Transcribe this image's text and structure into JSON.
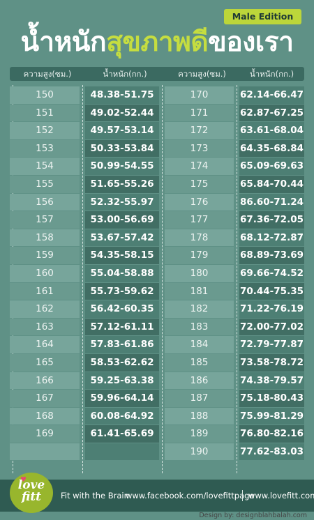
{
  "edition_badge": "Male Edition",
  "title": {
    "part1": "น้ำหนัก",
    "part2": "สุขภาพดี",
    "part3": "ของเรา"
  },
  "table": {
    "headers": [
      "ความสูง(ซม.)",
      "น้ำหนัก(กก.)",
      "ความสูง(ซม.)",
      "น้ำหนัก(กก.)"
    ],
    "left": [
      {
        "height": "150",
        "weight": "48.38-51.75"
      },
      {
        "height": "151",
        "weight": "49.02-52.44"
      },
      {
        "height": "152",
        "weight": "49.57-53.14"
      },
      {
        "height": "153",
        "weight": "50.33-53.84"
      },
      {
        "height": "154",
        "weight": "50.99-54.55"
      },
      {
        "height": "155",
        "weight": "51.65-55.26"
      },
      {
        "height": "156",
        "weight": "52.32-55.97"
      },
      {
        "height": "157",
        "weight": "53.00-56.69"
      },
      {
        "height": "158",
        "weight": "53.67-57.42"
      },
      {
        "height": "159",
        "weight": "54.35-58.15"
      },
      {
        "height": "160",
        "weight": "55.04-58.88"
      },
      {
        "height": "161",
        "weight": "55.73-59.62"
      },
      {
        "height": "162",
        "weight": "56.42-60.35"
      },
      {
        "height": "163",
        "weight": "57.12-61.11"
      },
      {
        "height": "164",
        "weight": "57.83-61.86"
      },
      {
        "height": "165",
        "weight": "58.53-62.62"
      },
      {
        "height": "166",
        "weight": "59.25-63.38"
      },
      {
        "height": "167",
        "weight": "59.96-64.14"
      },
      {
        "height": "168",
        "weight": "60.08-64.92"
      },
      {
        "height": "169",
        "weight": "61.41-65.69"
      }
    ],
    "right": [
      {
        "height": "170",
        "weight": "62.14-66.47"
      },
      {
        "height": "171",
        "weight": "62.87-67.25"
      },
      {
        "height": "172",
        "weight": "63.61-68.04"
      },
      {
        "height": "173",
        "weight": "64.35-68.84"
      },
      {
        "height": "174",
        "weight": "65.09-69.63"
      },
      {
        "height": "175",
        "weight": "65.84-70.44"
      },
      {
        "height": "176",
        "weight": "86.60-71.24"
      },
      {
        "height": "177",
        "weight": "67.36-72.05"
      },
      {
        "height": "178",
        "weight": "68.12-72.87"
      },
      {
        "height": "179",
        "weight": "68.89-73.69"
      },
      {
        "height": "180",
        "weight": "69.66-74.52"
      },
      {
        "height": "181",
        "weight": "70.44-75.35"
      },
      {
        "height": "182",
        "weight": "71.22-76.19"
      },
      {
        "height": "183",
        "weight": "72.00-77.02"
      },
      {
        "height": "184",
        "weight": "72.79-77.87"
      },
      {
        "height": "185",
        "weight": "73.58-78.72"
      },
      {
        "height": "186",
        "weight": "74.38-79.57"
      },
      {
        "height": "187",
        "weight": "75.18-80.43"
      },
      {
        "height": "188",
        "weight": "75.99-81.29"
      },
      {
        "height": "189",
        "weight": "76.80-82.16"
      },
      {
        "height": "190",
        "weight": "77.62-83.03"
      }
    ]
  },
  "footer": {
    "logo_text_line1": "love",
    "logo_text_line2": "fitt",
    "tagline": "Fit with the Brain",
    "facebook": "www.facebook.com/lovefittpage",
    "website": "www.lovefitt.com",
    "credit": "Design by: designblahbalah.com"
  },
  "colors": {
    "background": "#5f9186",
    "accent": "#c5dd40",
    "badge": "#bcd63a",
    "footer": "#2f5b52"
  }
}
